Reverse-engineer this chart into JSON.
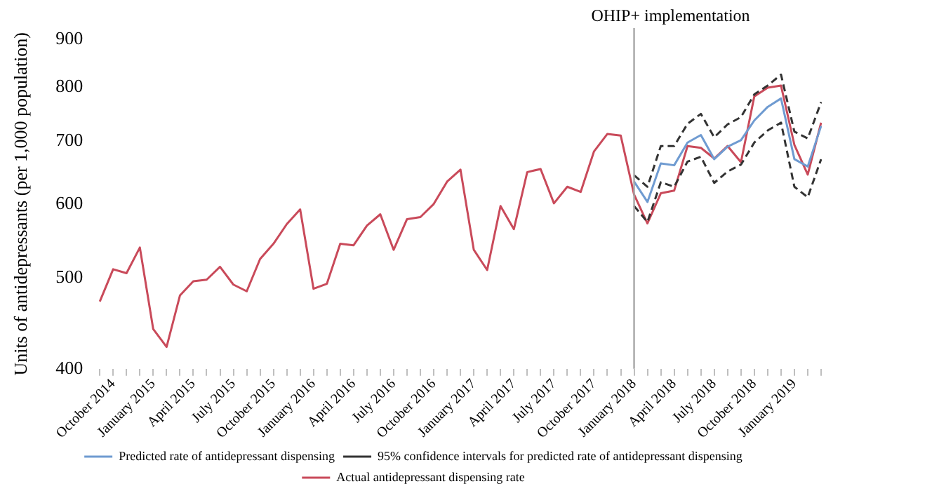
{
  "chart_data": {
    "type": "line",
    "ylabel": "Units of antidepressants (per 1,000 population)",
    "categories": [
      null,
      "October 2014",
      null,
      null,
      "January 2015",
      null,
      null,
      "April 2015",
      null,
      null,
      "July 2015",
      null,
      null,
      "October 2015",
      null,
      null,
      "January 2016",
      null,
      null,
      "April 2016",
      null,
      null,
      "July 2016",
      null,
      null,
      "October 2016",
      null,
      null,
      "January 2017",
      null,
      null,
      "April 2017",
      null,
      null,
      "July 2017",
      null,
      null,
      "October 2017",
      null,
      null,
      "January 2018",
      null,
      null,
      "April 2018",
      null,
      null,
      "July 2018",
      null,
      null,
      "October 2018",
      null,
      null,
      "January 2019",
      null,
      null
    ],
    "series": [
      {
        "name": "Predicted rate of antidepressant dispensing",
        "color": "#6f9bd1",
        "values": [
          null,
          null,
          null,
          null,
          null,
          null,
          null,
          null,
          null,
          null,
          null,
          null,
          null,
          null,
          null,
          null,
          null,
          null,
          null,
          null,
          null,
          null,
          null,
          null,
          null,
          null,
          null,
          null,
          null,
          null,
          null,
          null,
          null,
          null,
          null,
          null,
          null,
          null,
          null,
          null,
          634,
          603,
          663,
          660,
          698,
          711,
          670,
          691,
          702,
          737,
          762,
          778,
          670,
          658,
          727
        ]
      },
      {
        "name": "95% confidence intervals for predicted rate of antidepressant dispensing",
        "color": "#333333",
        "line_style": "dashed",
        "values": [
          null,
          null,
          null,
          null,
          null,
          null,
          null,
          null,
          null,
          null,
          null,
          null,
          null,
          null,
          null,
          null,
          null,
          null,
          null,
          null,
          null,
          null,
          null,
          null,
          null,
          null,
          null,
          null,
          null,
          null,
          null,
          null,
          null,
          null,
          null,
          null,
          null,
          null,
          null,
          null,
          644,
          626,
          692,
          692,
          731,
          749,
          707,
          730,
          743,
          786,
          803,
          825,
          717,
          705,
          771
        ]
      },
      {
        "color": "#333333",
        "line_style": "dashed",
        "values": [
          null,
          null,
          null,
          null,
          null,
          null,
          null,
          null,
          null,
          null,
          null,
          null,
          null,
          null,
          null,
          null,
          null,
          null,
          null,
          null,
          null,
          null,
          null,
          null,
          null,
          null,
          null,
          null,
          null,
          null,
          null,
          null,
          null,
          null,
          null,
          null,
          null,
          null,
          null,
          null,
          597,
          574,
          633,
          626,
          666,
          674,
          632,
          650,
          661,
          698,
          719,
          733,
          626,
          610,
          670
        ]
      },
      {
        "name": "Actual antidepressant dispensing rate",
        "color": "#c94a5a",
        "values": [
          472,
          511,
          506,
          539,
          441,
          422,
          479,
          496,
          498,
          514,
          492,
          484,
          524,
          544,
          571,
          592,
          487,
          493,
          544,
          542,
          569,
          585,
          536,
          578,
          581,
          600,
          634,
          653,
          536,
          510,
          597,
          564,
          649,
          654,
          601,
          626,
          618,
          683,
          713,
          710,
          614,
          572,
          616,
          620,
          692,
          689,
          671,
          692,
          665,
          782,
          799,
          803,
          694,
          645,
          733
        ]
      }
    ],
    "ylim": [
      400,
      900
    ],
    "yticks": [
      400,
      500,
      600,
      700,
      800,
      900
    ],
    "log": "y",
    "grid": false,
    "legend": "bottom",
    "marker": "none",
    "line_style": "solid",
    "ref_lines": [
      {
        "axis": "x",
        "value": "January 2018",
        "label": "OHIP+ implementation",
        "color": "#a6a6a6"
      }
    ]
  }
}
